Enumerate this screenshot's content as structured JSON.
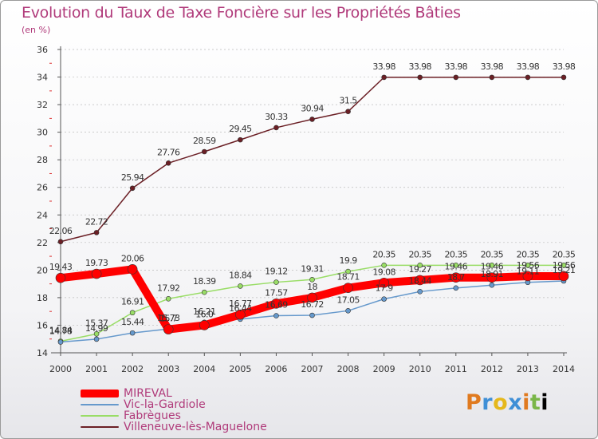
{
  "colors": {
    "title": "#b03a7a",
    "mireval": "#ff0000",
    "vic": "#6699cc",
    "fabregues": "#99dd66",
    "villeneuve": "#6b1f25"
  },
  "chart_data": {
    "type": "line",
    "title": "Evolution du Taux de Taxe Foncière sur les Propriétés Bâties",
    "ylabel": "(en %)",
    "xlabel": "",
    "ylim": [
      14,
      36
    ],
    "yticks": [
      14,
      16,
      18,
      20,
      22,
      24,
      26,
      28,
      30,
      32,
      34,
      36
    ],
    "categories": [
      "2000",
      "2001",
      "2002",
      "2003",
      "2004",
      "2005",
      "2006",
      "2007",
      "2008",
      "2009",
      "2010",
      "2011",
      "2012",
      "2013",
      "2014"
    ],
    "series": [
      {
        "name": "Villeneuve-lès-Maguelone",
        "color": "#6b1f25",
        "values": [
          22.06,
          22.72,
          25.94,
          27.76,
          28.59,
          29.45,
          30.33,
          30.94,
          31.5,
          33.98,
          33.98,
          33.98,
          33.98,
          33.98,
          33.98
        ],
        "labels": [
          "22.06",
          "22.72",
          "25.94",
          "27.76",
          "28.59",
          "29.45",
          "30.33",
          "30.94",
          "31.5",
          "33.98",
          "33.98",
          "33.98",
          "33.98",
          "33.98",
          "33.98"
        ]
      },
      {
        "name": "Fabrègues",
        "color": "#99dd66",
        "values": [
          14.84,
          15.37,
          16.91,
          17.92,
          18.39,
          18.84,
          19.12,
          19.31,
          19.9,
          20.35,
          20.35,
          20.35,
          20.35,
          20.35,
          20.35
        ],
        "labels": [
          "14.84",
          "15.37",
          "16.91",
          "17.92",
          "18.39",
          "18.84",
          "19.12",
          "19.31",
          "19.9",
          "20.35",
          "20.35",
          "20.35",
          "20.35",
          "20.35",
          "20.35"
        ]
      },
      {
        "name": "Vic-la-Gardiole",
        "color": "#6699cc",
        "values": [
          14.78,
          14.99,
          15.44,
          15.73,
          16.21,
          16.44,
          16.69,
          16.72,
          17.05,
          17.9,
          18.44,
          18.7,
          18.91,
          19.11,
          19.21
        ],
        "labels": [
          "14.78",
          "14.99",
          "15.44",
          "15.73",
          "16.21",
          "16.44",
          "16.69",
          "16.72",
          "17.05",
          "17.9",
          "18.44",
          "18.7",
          "18.91",
          "19.11",
          "19.21"
        ]
      },
      {
        "name": "MIREVAL",
        "color": "#ff0000",
        "values": [
          19.43,
          19.73,
          20.06,
          15.7,
          16.0,
          16.77,
          17.57,
          18.0,
          18.71,
          19.08,
          19.27,
          19.46,
          19.46,
          19.56,
          19.56
        ],
        "labels": [
          "19.43",
          "19.73",
          "20.06",
          "15.7",
          "16.0",
          "16.77",
          "17.57",
          "18",
          "18.71",
          "19.08",
          "19.27",
          "19.46",
          "19.46",
          "19.56",
          "19.56"
        ]
      }
    ],
    "legend": [
      "MIREVAL",
      "Vic-la-Gardiole",
      "Fabrègues",
      "Villeneuve-lès-Maguelone"
    ],
    "legend_position": "bottom-left"
  },
  "logo": {
    "letters": [
      "P",
      "r",
      "o",
      "x",
      "i",
      "t",
      "i"
    ]
  }
}
